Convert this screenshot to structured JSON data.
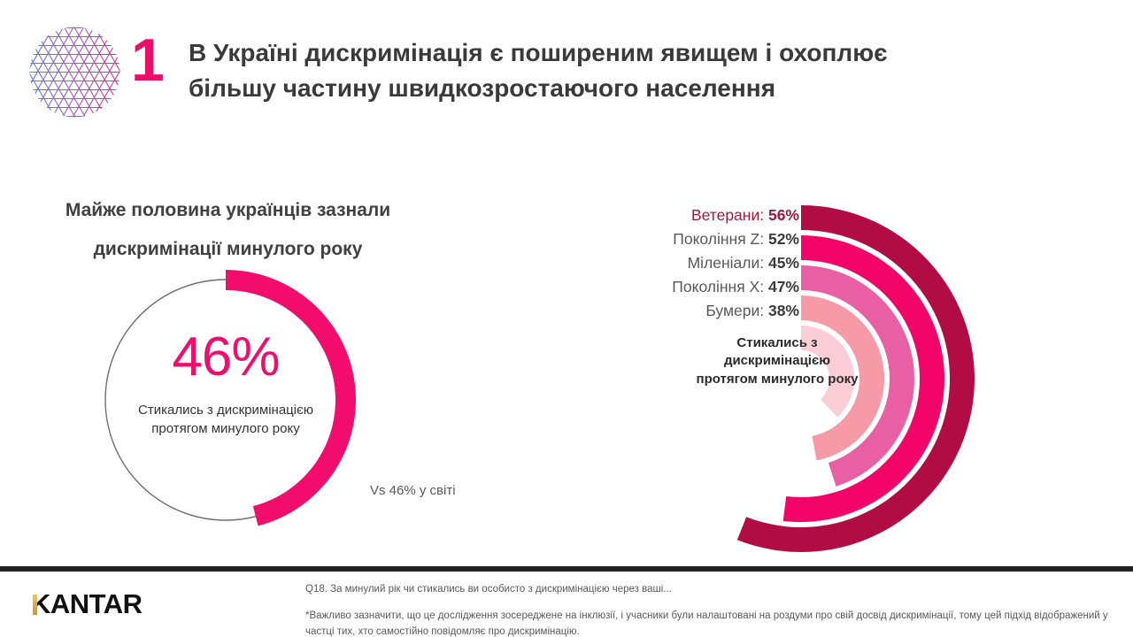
{
  "header": {
    "slide_number": "1",
    "title_line1": "В Україні дискримінація є поширеним явищем і охоплює",
    "title_line2": "більшу частину швидкозростаючого населення",
    "number_color": "#EC0F69"
  },
  "chart_data": [
    {
      "type": "pie",
      "style": "donut-gauge",
      "title_line1": "Майже половина українців зазнали",
      "title_line2": "дискримінації минулого року",
      "value": 46,
      "max": 100,
      "value_label": "46%",
      "unit": "%",
      "label": "Стикались з дискримінацією протягом минулого року",
      "annotation": "Vs 46% у світі",
      "color": "#F20D6C",
      "track_color": "#6E6E6E"
    },
    {
      "type": "bar",
      "style": "radial-arc",
      "categories": [
        "Ветерани",
        "Покоління Z",
        "Міленіали",
        "Покоління X",
        "Бумери"
      ],
      "values": [
        56,
        52,
        45,
        47,
        38
      ],
      "unit": "%",
      "value_range": [
        0,
        100
      ],
      "start_angle_deg": 0,
      "direction": "clockwise",
      "colors": [
        "#B10C44",
        "#F20368",
        "#E95FA4",
        "#F79AA8",
        "#FBCDD7"
      ],
      "label_colors": {
        "highlight_index": 0,
        "highlight": "#9C1A3C",
        "label": "#595959",
        "value": "#3B3B3B"
      },
      "center_label": "Стикались з дискримінацією протягом минулого року"
    }
  ],
  "footer": {
    "brand": "KANTAR",
    "source": "Q18. За минулий рік чи стикались ви особисто з дискримінацією через ваші...",
    "note": "*Важливо зазначити, що це дослідження зосереджене на інклюзії, і учасники були налаштовані на роздуми про свій досвід дискримінації, тому цей підхід відображений у частці тих, хто самостійно повідомляє про дискримінацію."
  }
}
